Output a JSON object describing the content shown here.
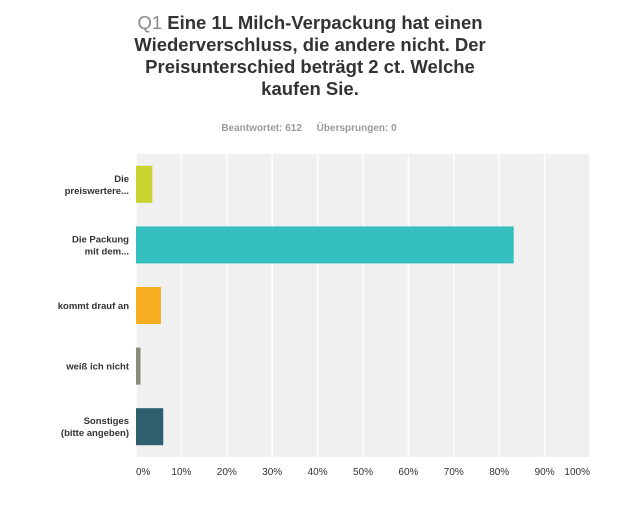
{
  "question": {
    "number": "Q1",
    "text": "Eine 1L Milch-Verpackung hat einen Wiederverschluss, die andere nicht. Der Preisunterschied beträgt 2 ct. Welche kaufen Sie."
  },
  "stats": {
    "answered": "Beantwortet: 612",
    "skipped": "Übersprungen: 0"
  },
  "chart_data": {
    "type": "bar",
    "orientation": "horizontal",
    "categories": [
      [
        "Die",
        "preiswertere..."
      ],
      [
        "Die Packung",
        "mit dem..."
      ],
      [
        "kommt drauf an"
      ],
      [
        "weiß ich nicht"
      ],
      [
        "Sonstiges",
        "(bitte angeben)"
      ]
    ],
    "values": [
      3.6,
      83.2,
      5.5,
      1.0,
      6.0
    ],
    "colors": [
      "#c8d430",
      "#35bfbf",
      "#f7ad20",
      "#8a8a7a",
      "#2e5f6e"
    ],
    "xlim": [
      0,
      100
    ],
    "xticks": [
      "0%",
      "10%",
      "20%",
      "30%",
      "40%",
      "50%",
      "60%",
      "70%",
      "80%",
      "90%",
      "100%"
    ],
    "grid": true,
    "background": "#f0f0f0"
  }
}
